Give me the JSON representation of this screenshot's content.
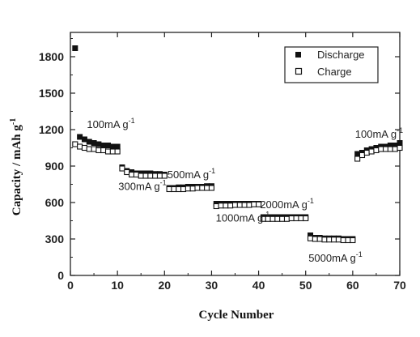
{
  "chart_data": {
    "type": "scatter",
    "xlabel": "Cycle Number",
    "ylabel": "Capacity / mAh g",
    "ylabel_sup": "-1",
    "xlim": [
      0,
      70
    ],
    "ylim": [
      0,
      2000
    ],
    "xticks": [
      0,
      10,
      20,
      30,
      40,
      50,
      60,
      70
    ],
    "yticks": [
      0,
      300,
      600,
      900,
      1200,
      1500,
      1800
    ],
    "grid": false,
    "legend_position": "top-right",
    "series": [
      {
        "name": "Discharge",
        "marker": "filled-square",
        "x": [
          1,
          2,
          3,
          4,
          5,
          6,
          7,
          8,
          9,
          10,
          11,
          12,
          13,
          14,
          15,
          16,
          17,
          18,
          19,
          20,
          21,
          22,
          23,
          24,
          25,
          26,
          27,
          28,
          29,
          30,
          31,
          32,
          33,
          34,
          35,
          36,
          37,
          38,
          39,
          40,
          41,
          42,
          43,
          44,
          45,
          46,
          47,
          48,
          49,
          50,
          51,
          52,
          53,
          54,
          55,
          56,
          57,
          58,
          59,
          60,
          61,
          62,
          63,
          64,
          65,
          66,
          67,
          68,
          69,
          70
        ],
        "y": [
          1870,
          1140,
          1120,
          1100,
          1090,
          1080,
          1070,
          1070,
          1060,
          1060,
          890,
          860,
          850,
          840,
          840,
          840,
          840,
          835,
          835,
          830,
          720,
          720,
          725,
          725,
          730,
          730,
          730,
          730,
          735,
          735,
          590,
          590,
          590,
          590,
          590,
          590,
          590,
          590,
          590,
          590,
          480,
          480,
          480,
          480,
          480,
          480,
          480,
          480,
          480,
          480,
          330,
          310,
          310,
          305,
          305,
          305,
          305,
          300,
          300,
          300,
          1000,
          1010,
          1030,
          1040,
          1050,
          1060,
          1060,
          1070,
          1070,
          1090
        ]
      },
      {
        "name": "Charge",
        "marker": "open-square",
        "x": [
          1,
          2,
          3,
          4,
          5,
          6,
          7,
          8,
          9,
          10,
          11,
          12,
          13,
          14,
          15,
          16,
          17,
          18,
          19,
          20,
          21,
          22,
          23,
          24,
          25,
          26,
          27,
          28,
          29,
          30,
          31,
          32,
          33,
          34,
          35,
          36,
          37,
          38,
          39,
          40,
          41,
          42,
          43,
          44,
          45,
          46,
          47,
          48,
          49,
          50,
          51,
          52,
          53,
          54,
          55,
          56,
          57,
          58,
          59,
          60,
          61,
          62,
          63,
          64,
          65,
          66,
          67,
          68,
          69,
          70
        ],
        "y": [
          1080,
          1060,
          1050,
          1040,
          1040,
          1030,
          1030,
          1020,
          1020,
          1020,
          880,
          850,
          830,
          830,
          820,
          820,
          820,
          820,
          820,
          820,
          710,
          710,
          710,
          710,
          715,
          715,
          720,
          720,
          720,
          720,
          570,
          575,
          575,
          575,
          580,
          580,
          580,
          580,
          585,
          585,
          465,
          465,
          465,
          465,
          465,
          465,
          470,
          470,
          470,
          470,
          305,
          300,
          300,
          295,
          295,
          295,
          295,
          290,
          290,
          290,
          960,
          990,
          1010,
          1020,
          1030,
          1040,
          1040,
          1040,
          1040,
          1050
        ]
      }
    ],
    "annotations": [
      {
        "text": "100mA g",
        "sup": "-1",
        "x": 3.5,
        "y": 1215
      },
      {
        "text": "500mA g",
        "sup": "-1",
        "x": 20.6,
        "y": 800
      },
      {
        "text": "300mA g",
        "sup": "-1",
        "x": 10.2,
        "y": 705
      },
      {
        "text": "2000mA g",
        "sup": "-1",
        "x": 40.3,
        "y": 555
      },
      {
        "text": "1000mA g",
        "sup": "-1",
        "x": 30.9,
        "y": 445
      },
      {
        "text": "5000mA g",
        "sup": "-1",
        "x": 50.6,
        "y": 115
      },
      {
        "text": "100mA g",
        "sup": "-1",
        "x": 60.5,
        "y": 1135
      }
    ]
  },
  "colors": {
    "axis": "#222222",
    "marker": "#111111",
    "background": "#ffffff"
  }
}
